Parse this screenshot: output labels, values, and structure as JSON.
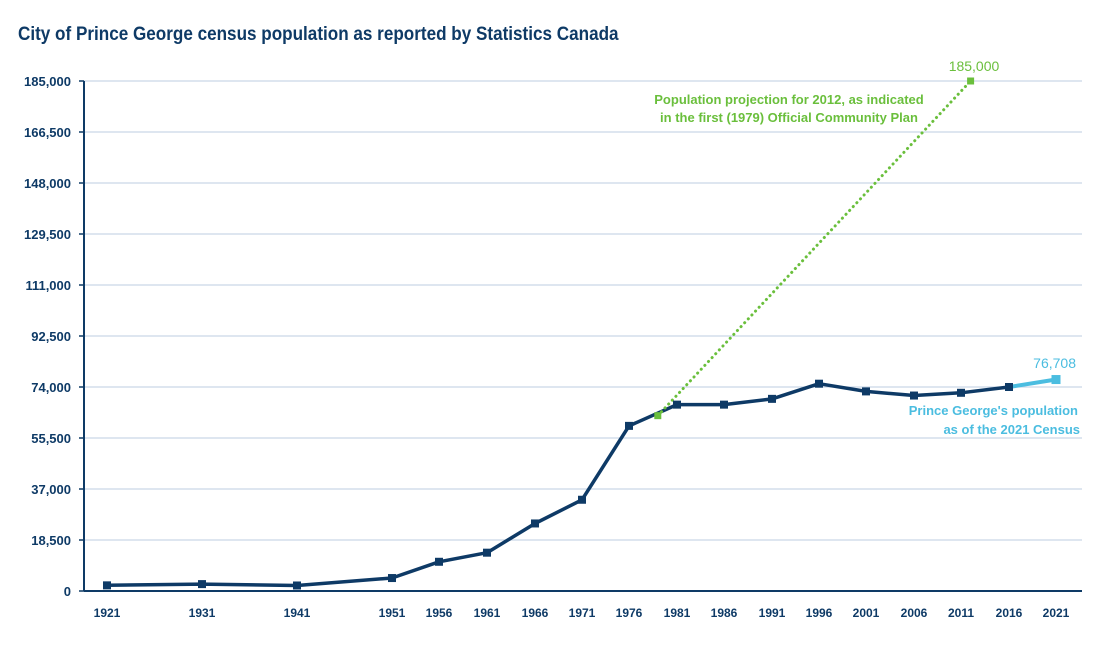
{
  "chart_data": {
    "type": "line",
    "title": "City of Prince George census population as reported by Statistics Canada",
    "xlabel": "",
    "ylabel": "",
    "ylim": [
      0,
      185000
    ],
    "y_ticks": [
      "0",
      "18,500",
      "37,000",
      "55,500",
      "74,000",
      "92,500",
      "111,000",
      "129,500",
      "148,000",
      "166,500",
      "185,000"
    ],
    "y_tick_values": [
      0,
      18500,
      37000,
      55500,
      74000,
      92500,
      111000,
      129500,
      148000,
      166500,
      185000
    ],
    "x_ticks": [
      "1921",
      "1931",
      "1941",
      "1951",
      "1956",
      "1961",
      "1966",
      "1971",
      "1976",
      "1981",
      "1986",
      "1991",
      "1996",
      "2001",
      "2006",
      "2011",
      "2016",
      "2021"
    ],
    "grid": true,
    "colors": {
      "census": "#0e3a66",
      "projection": "#6abf3c",
      "latest": "#4bbde0",
      "grid": "#c9d6e6"
    },
    "series": [
      {
        "key": "census",
        "style": "solid",
        "points": [
          {
            "x": 1921,
            "y": 2050
          },
          {
            "x": 1931,
            "y": 2500
          },
          {
            "x": 1941,
            "y": 2000
          },
          {
            "x": 1951,
            "y": 4700
          },
          {
            "x": 1956,
            "y": 10600
          },
          {
            "x": 1961,
            "y": 13900
          },
          {
            "x": 1966,
            "y": 24500
          },
          {
            "x": 1971,
            "y": 33100
          },
          {
            "x": 1976,
            "y": 59900
          },
          {
            "x": 1981,
            "y": 67600
          },
          {
            "x": 1986,
            "y": 67600
          },
          {
            "x": 1991,
            "y": 69700
          },
          {
            "x": 1996,
            "y": 75200
          },
          {
            "x": 2001,
            "y": 72400
          },
          {
            "x": 2006,
            "y": 70900
          },
          {
            "x": 2011,
            "y": 71900
          },
          {
            "x": 2016,
            "y": 74000
          }
        ]
      },
      {
        "key": "latest",
        "style": "solid",
        "points": [
          {
            "x": 2016,
            "y": 74000
          },
          {
            "x": 2021,
            "y": 76708
          }
        ]
      },
      {
        "key": "projection",
        "style": "dotted",
        "points": [
          {
            "x": 1979,
            "y": 63600
          },
          {
            "x": 2012,
            "y": 185000
          }
        ]
      }
    ],
    "annotations": {
      "projection_value": "185,000",
      "projection_note_1": "Population projection for 2012, as indicated",
      "projection_note_2": "in the first (1979) Official Community Plan",
      "latest_value": "76,708",
      "latest_note_1": "Prince George's population",
      "latest_note_2": "as of the 2021 Census"
    }
  }
}
